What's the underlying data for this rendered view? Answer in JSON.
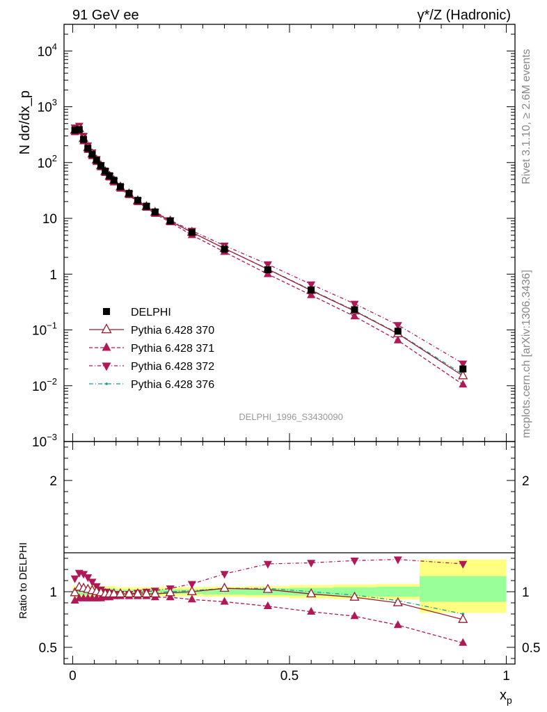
{
  "header": {
    "left": "91 GeV ee",
    "right": "γ*/Z (Hadronic)"
  },
  "side_labels": {
    "rivet": "Rivet 3.1.10, ≥ 2.6M events",
    "mcplots": "mcplots.cern.ch [arXiv:1306.3436]"
  },
  "watermark": "DELPHI_1996_S3430090",
  "colors": {
    "data": "#000000",
    "s370": "#9a1b2f",
    "s371": "#b01858",
    "s372": "#b01858",
    "s376": "#189a98",
    "band_outer": "#ffff80",
    "band_inner": "#99ff99"
  },
  "chart_data": [
    {
      "type": "line",
      "ylabel": "N dσ/dx_p",
      "yscale": "log",
      "ylim": [
        0.001,
        30000
      ],
      "xlim": [
        -0.02,
        1.02
      ],
      "ytick_labels": [
        {
          "v": 10000,
          "b": "10",
          "e": "4"
        },
        {
          "v": 1000,
          "b": "10",
          "e": "3"
        },
        {
          "v": 100,
          "b": "10",
          "e": "2"
        },
        {
          "v": 10,
          "b": "10",
          "e": ""
        },
        {
          "v": 1,
          "b": "1",
          "e": ""
        },
        {
          "v": 0.1,
          "b": "10",
          "e": "−1"
        },
        {
          "v": 0.01,
          "b": "10",
          "e": "−2"
        },
        {
          "v": 0.001,
          "b": "10",
          "e": "−3"
        }
      ],
      "legend": [
        {
          "key": "data",
          "label": "DELPHI"
        },
        {
          "key": "s370",
          "label": "Pythia 6.428 370"
        },
        {
          "key": "s371",
          "label": "Pythia 6.428 371"
        },
        {
          "key": "s372",
          "label": "Pythia 6.428 372"
        },
        {
          "key": "s376",
          "label": "Pythia 6.428 376"
        }
      ],
      "x": [
        0.005,
        0.015,
        0.025,
        0.035,
        0.045,
        0.055,
        0.065,
        0.075,
        0.085,
        0.095,
        0.11,
        0.13,
        0.15,
        0.17,
        0.19,
        0.225,
        0.275,
        0.35,
        0.45,
        0.55,
        0.65,
        0.75,
        0.9
      ],
      "data_values": [
        380,
        390,
        260,
        180,
        140,
        110,
        88,
        70,
        58,
        48,
        37,
        28,
        21,
        16.5,
        13,
        9,
        5.6,
        2.8,
        1.2,
        0.52,
        0.23,
        0.095,
        0.02
      ],
      "s371_values": [
        350,
        360,
        240,
        168,
        130,
        102,
        82,
        65,
        54,
        44,
        34,
        26,
        19.5,
        15.5,
        12,
        8.5,
        5.0,
        2.5,
        1.0,
        0.42,
        0.175,
        0.065,
        0.0105
      ]
    },
    {
      "type": "line",
      "ylabel": "Ratio to DELPHI",
      "xlabel": "x_p",
      "ylim": [
        0.35,
        2.35
      ],
      "xlim": [
        -0.02,
        1.02
      ],
      "xtick_labels": [
        {
          "v": 0,
          "t": "0"
        },
        {
          "v": 0.5,
          "t": "0.5"
        },
        {
          "v": 1,
          "t": "1"
        }
      ],
      "ytick_labels": [
        {
          "v": 0.5,
          "t": "0.5"
        },
        {
          "v": 1,
          "t": "1"
        },
        {
          "v": 2,
          "t": "2"
        }
      ],
      "bands": [
        {
          "x0": 0.0,
          "x1": 0.01,
          "outer": [
            0.95,
            1.05
          ],
          "inner": [
            0.97,
            1.03
          ]
        },
        {
          "x0": 0.01,
          "x1": 0.1,
          "outer": [
            0.95,
            1.05
          ],
          "inner": [
            0.97,
            1.03
          ]
        },
        {
          "x0": 0.1,
          "x1": 0.2,
          "outer": [
            0.96,
            1.04
          ],
          "inner": [
            0.98,
            1.02
          ]
        },
        {
          "x0": 0.2,
          "x1": 0.3,
          "outer": [
            0.96,
            1.04
          ],
          "inner": [
            0.98,
            1.02
          ]
        },
        {
          "x0": 0.3,
          "x1": 0.4,
          "outer": [
            0.955,
            1.045
          ],
          "inner": [
            0.975,
            1.025
          ]
        },
        {
          "x0": 0.4,
          "x1": 0.5,
          "outer": [
            0.95,
            1.05
          ],
          "inner": [
            0.97,
            1.03
          ]
        },
        {
          "x0": 0.5,
          "x1": 0.6,
          "outer": [
            0.94,
            1.06
          ],
          "inner": [
            0.965,
            1.035
          ]
        },
        {
          "x0": 0.6,
          "x1": 0.7,
          "outer": [
            0.935,
            1.065
          ],
          "inner": [
            0.96,
            1.04
          ]
        },
        {
          "x0": 0.7,
          "x1": 0.8,
          "outer": [
            0.93,
            1.07
          ],
          "inner": [
            0.955,
            1.045
          ]
        },
        {
          "x0": 0.8,
          "x1": 1.0,
          "outer": [
            0.81,
            1.29
          ],
          "inner": [
            0.91,
            1.14
          ]
        }
      ],
      "x": [
        0.005,
        0.015,
        0.025,
        0.035,
        0.045,
        0.055,
        0.065,
        0.075,
        0.085,
        0.095,
        0.11,
        0.13,
        0.15,
        0.17,
        0.19,
        0.225,
        0.275,
        0.35,
        0.45,
        0.55,
        0.65,
        0.75,
        0.9
      ],
      "series": [
        {
          "key": "s370",
          "marker": "open-tri-up",
          "dash": "",
          "values": [
            0.99,
            1.04,
            1.03,
            1.02,
            1.01,
            1.0,
            0.99,
            0.98,
            0.98,
            0.98,
            0.98,
            0.98,
            0.98,
            0.98,
            0.98,
            0.99,
            1.0,
            1.03,
            1.02,
            0.98,
            0.95,
            0.9,
            0.75
          ]
        },
        {
          "key": "s371",
          "marker": "tri-up",
          "dash": "5,3",
          "values": [
            0.92,
            0.94,
            0.94,
            0.94,
            0.94,
            0.94,
            0.94,
            0.95,
            0.95,
            0.96,
            0.96,
            0.96,
            0.96,
            0.96,
            0.95,
            0.95,
            0.93,
            0.91,
            0.87,
            0.82,
            0.78,
            0.7,
            0.54
          ]
        },
        {
          "key": "s372",
          "marker": "tri-down",
          "dash": "5,3,1,3",
          "values": [
            1.12,
            1.17,
            1.16,
            1.13,
            1.09,
            1.05,
            1.02,
            1.0,
            0.99,
            0.98,
            0.98,
            0.98,
            0.99,
            1.0,
            1.01,
            1.03,
            1.07,
            1.16,
            1.25,
            1.26,
            1.28,
            1.29,
            1.25
          ]
        },
        {
          "key": "s376",
          "marker": "dot",
          "dash": "6,3,1,3",
          "values": [
            0.99,
            1.02,
            1.02,
            1.01,
            1.0,
            0.99,
            0.98,
            0.98,
            0.98,
            0.98,
            0.98,
            0.98,
            0.98,
            0.98,
            0.99,
            1.0,
            1.01,
            1.03,
            1.03,
            1.0,
            0.97,
            0.92,
            0.8
          ]
        }
      ]
    }
  ]
}
